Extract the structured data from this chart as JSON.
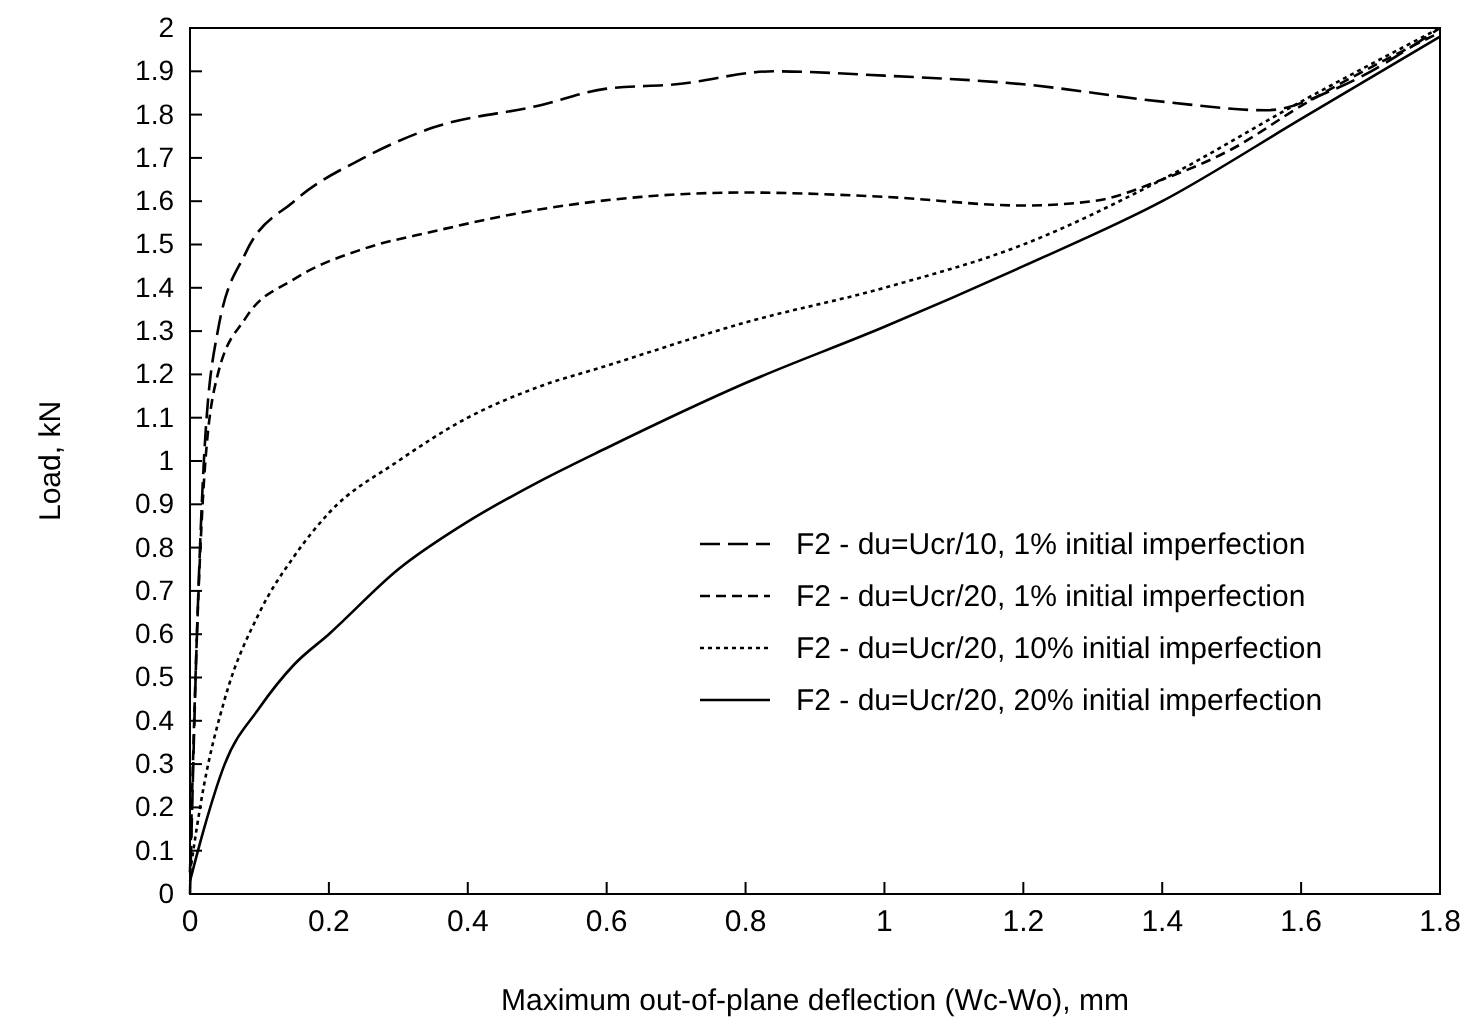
{
  "chart_data": {
    "type": "line",
    "xlabel": "Maximum out-of-plane deflection (Wc-Wo), mm",
    "ylabel": "Load, kN",
    "xlim": [
      0,
      1.8
    ],
    "xticks": [
      0,
      0.2,
      0.4,
      0.6,
      0.8,
      1,
      1.2,
      1.4,
      1.6,
      1.8
    ],
    "ylim": [
      0,
      2
    ],
    "yticks": [
      0,
      0.1,
      0.2,
      0.3,
      0.4,
      0.5,
      0.6,
      0.7,
      0.8,
      0.9,
      1,
      1.1,
      1.2,
      1.3,
      1.4,
      1.5,
      1.6,
      1.7,
      1.8,
      1.9,
      2
    ],
    "grid": false,
    "legend": "bottom right",
    "marker": "none",
    "series": [
      {
        "name": "F2 - du=Ucr/10, 1% initial imperfection",
        "color": "#000000",
        "line_style": "dashed",
        "x": [
          0,
          0.01,
          0.02,
          0.04,
          0.08,
          0.15,
          0.25,
          0.35,
          0.5,
          0.6,
          0.7,
          0.84,
          1.0,
          1.2,
          1.4,
          1.55,
          1.65,
          1.8
        ],
        "values": [
          0,
          0.6,
          1.0,
          1.3,
          1.48,
          1.6,
          1.7,
          1.77,
          1.82,
          1.86,
          1.87,
          1.9,
          1.89,
          1.87,
          1.83,
          1.81,
          1.86,
          2.0
        ]
      },
      {
        "name": "F2 - du=Ucr/20, 1% initial imperfection",
        "color": "#000000",
        "line_style": "dashed",
        "x": [
          0,
          0.01,
          0.02,
          0.04,
          0.08,
          0.15,
          0.25,
          0.35,
          0.5,
          0.65,
          0.8,
          1.0,
          1.2,
          1.3,
          1.4,
          1.5,
          1.6,
          1.8
        ],
        "values": [
          0.05,
          0.6,
          0.95,
          1.2,
          1.33,
          1.42,
          1.49,
          1.53,
          1.58,
          1.61,
          1.62,
          1.61,
          1.59,
          1.6,
          1.65,
          1.72,
          1.82,
          1.99
        ]
      },
      {
        "name": "F2 - du=Ucr/20, 10% initial imperfection",
        "color": "#000000",
        "line_style": "dotted",
        "x": [
          0,
          0.02,
          0.05,
          0.1,
          0.15,
          0.2,
          0.3,
          0.4,
          0.5,
          0.6,
          0.8,
          1.0,
          1.2,
          1.4,
          1.6,
          1.8
        ],
        "values": [
          0.05,
          0.25,
          0.45,
          0.65,
          0.78,
          0.88,
          1.0,
          1.1,
          1.17,
          1.22,
          1.32,
          1.4,
          1.5,
          1.65,
          1.83,
          2.0
        ]
      },
      {
        "name": "F2 - du=Ucr/20, 20% initial imperfection",
        "color": "#000000",
        "line_style": "solid",
        "x": [
          0,
          0.02,
          0.05,
          0.1,
          0.15,
          0.2,
          0.3,
          0.4,
          0.5,
          0.6,
          0.8,
          1.0,
          1.2,
          1.4,
          1.6,
          1.8
        ],
        "values": [
          0.03,
          0.15,
          0.3,
          0.43,
          0.53,
          0.6,
          0.75,
          0.86,
          0.95,
          1.03,
          1.18,
          1.31,
          1.45,
          1.6,
          1.79,
          1.98
        ]
      }
    ]
  }
}
